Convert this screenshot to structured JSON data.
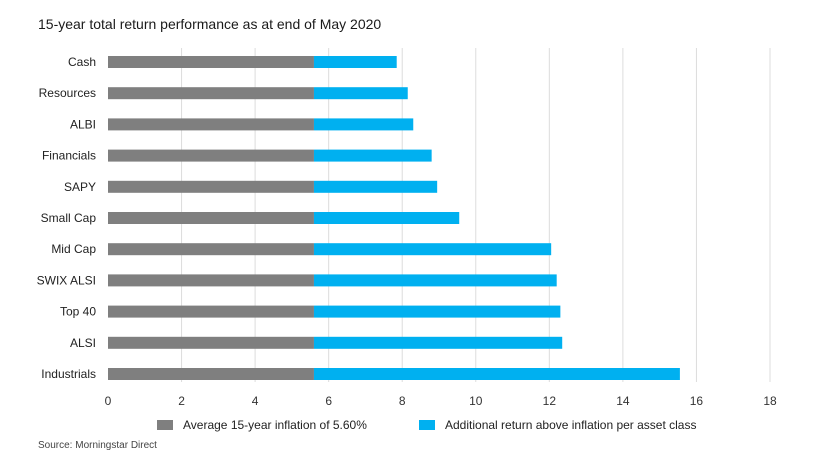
{
  "chart_data": {
    "type": "bar",
    "orientation": "horizontal",
    "stacked": true,
    "title": "15-year total return performance as at end of May 2020",
    "source": "Source: Morningstar Direct",
    "categories": [
      "Cash",
      "Resources",
      "ALBI",
      "Financials",
      "SAPY",
      "Small Cap",
      "Mid Cap",
      "SWIX ALSI",
      "Top 40",
      "ALSI",
      "Industrials"
    ],
    "series": [
      {
        "name": "Average 15-year inflation of 5.60%",
        "color": "#7f7f7f",
        "values": [
          5.6,
          5.6,
          5.6,
          5.6,
          5.6,
          5.6,
          5.6,
          5.6,
          5.6,
          5.6,
          5.6
        ]
      },
      {
        "name": "Additional return above inflation per asset class",
        "color": "#00b0f0",
        "values": [
          2.25,
          2.55,
          2.7,
          3.2,
          3.35,
          3.95,
          6.45,
          6.6,
          6.7,
          6.75,
          9.95
        ]
      }
    ],
    "xlim": [
      0,
      18
    ],
    "xticks": [
      0,
      2,
      4,
      6,
      8,
      10,
      12,
      14,
      16,
      18
    ],
    "grid": "vertical",
    "legend": "bottom"
  }
}
